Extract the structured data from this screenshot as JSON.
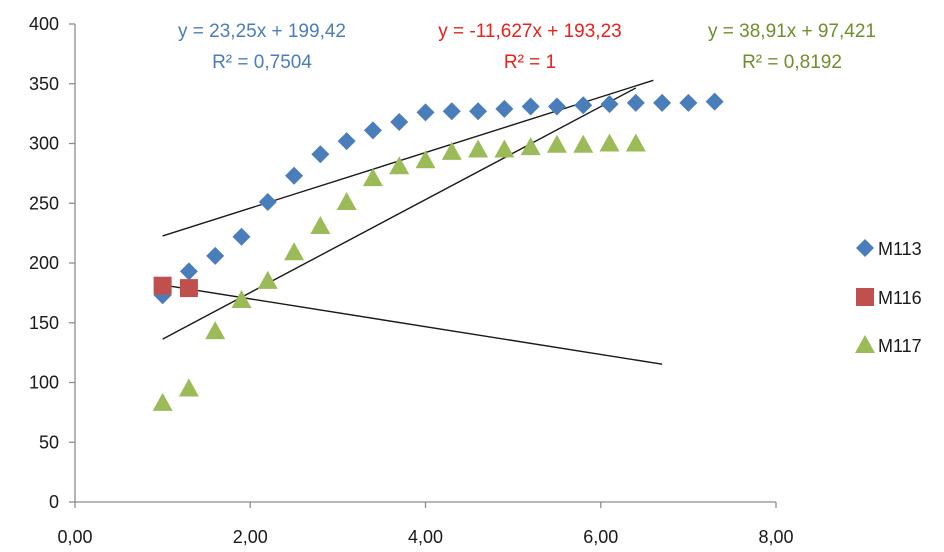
{
  "chart_data": {
    "type": "scatter",
    "xlim": [
      0,
      8
    ],
    "ylim": [
      0,
      400
    ],
    "x_ticks": [
      "0,00",
      "2,00",
      "4,00",
      "6,00",
      "8,00"
    ],
    "y_ticks": [
      "0",
      "50",
      "100",
      "150",
      "200",
      "250",
      "300",
      "350",
      "400"
    ],
    "grid": false,
    "legend_placement": "right",
    "series": [
      {
        "name": "M113",
        "marker": "diamond",
        "color": "#4a7ebb",
        "points": [
          [
            1.0,
            173
          ],
          [
            1.3,
            193
          ],
          [
            1.6,
            206
          ],
          [
            1.9,
            222
          ],
          [
            2.2,
            251
          ],
          [
            2.5,
            273
          ],
          [
            2.8,
            291
          ],
          [
            3.1,
            302
          ],
          [
            3.4,
            311
          ],
          [
            3.7,
            318
          ],
          [
            4.0,
            326
          ],
          [
            4.3,
            327
          ],
          [
            4.6,
            327
          ],
          [
            4.9,
            329
          ],
          [
            5.2,
            331
          ],
          [
            5.5,
            331
          ],
          [
            5.8,
            332
          ],
          [
            6.1,
            333
          ],
          [
            6.4,
            334
          ],
          [
            6.7,
            334
          ],
          [
            7.0,
            334
          ],
          [
            7.3,
            335
          ]
        ],
        "trendline": {
          "slope": 23.25,
          "intercept": 199.42,
          "x_range": [
            1.0,
            6.6
          ],
          "equation": "y = 23,25x + 199,42",
          "r2": "R² = 0,7504",
          "color": "#4a7ebb"
        }
      },
      {
        "name": "M116",
        "marker": "square",
        "color": "#c0504d",
        "points": [
          [
            1.0,
            181
          ],
          [
            1.3,
            179
          ]
        ],
        "trendline": {
          "slope": -11.627,
          "intercept": 193.23,
          "x_range": [
            1.0,
            6.7
          ],
          "equation": "y = -11,627x + 193,23",
          "r2": "R² = 1",
          "color": "#e8211c"
        }
      },
      {
        "name": "M117",
        "marker": "triangle",
        "color": "#9bbb59",
        "points": [
          [
            1.0,
            83
          ],
          [
            1.3,
            95
          ],
          [
            1.6,
            143
          ],
          [
            1.9,
            169
          ],
          [
            2.2,
            185
          ],
          [
            2.5,
            209
          ],
          [
            2.8,
            231
          ],
          [
            3.1,
            251
          ],
          [
            3.4,
            271
          ],
          [
            3.7,
            281
          ],
          [
            4.0,
            286
          ],
          [
            4.3,
            293
          ],
          [
            4.6,
            295
          ],
          [
            4.9,
            295
          ],
          [
            5.2,
            297
          ],
          [
            5.5,
            299
          ],
          [
            5.8,
            299
          ],
          [
            6.1,
            300
          ],
          [
            6.4,
            300
          ]
        ],
        "trendline": {
          "slope": 38.91,
          "intercept": 97.421,
          "x_range": [
            1.0,
            6.4
          ],
          "equation": "y = 38,91x + 97,421",
          "r2": "R² = 0,8192",
          "color": "#6f8f2a"
        }
      }
    ]
  }
}
